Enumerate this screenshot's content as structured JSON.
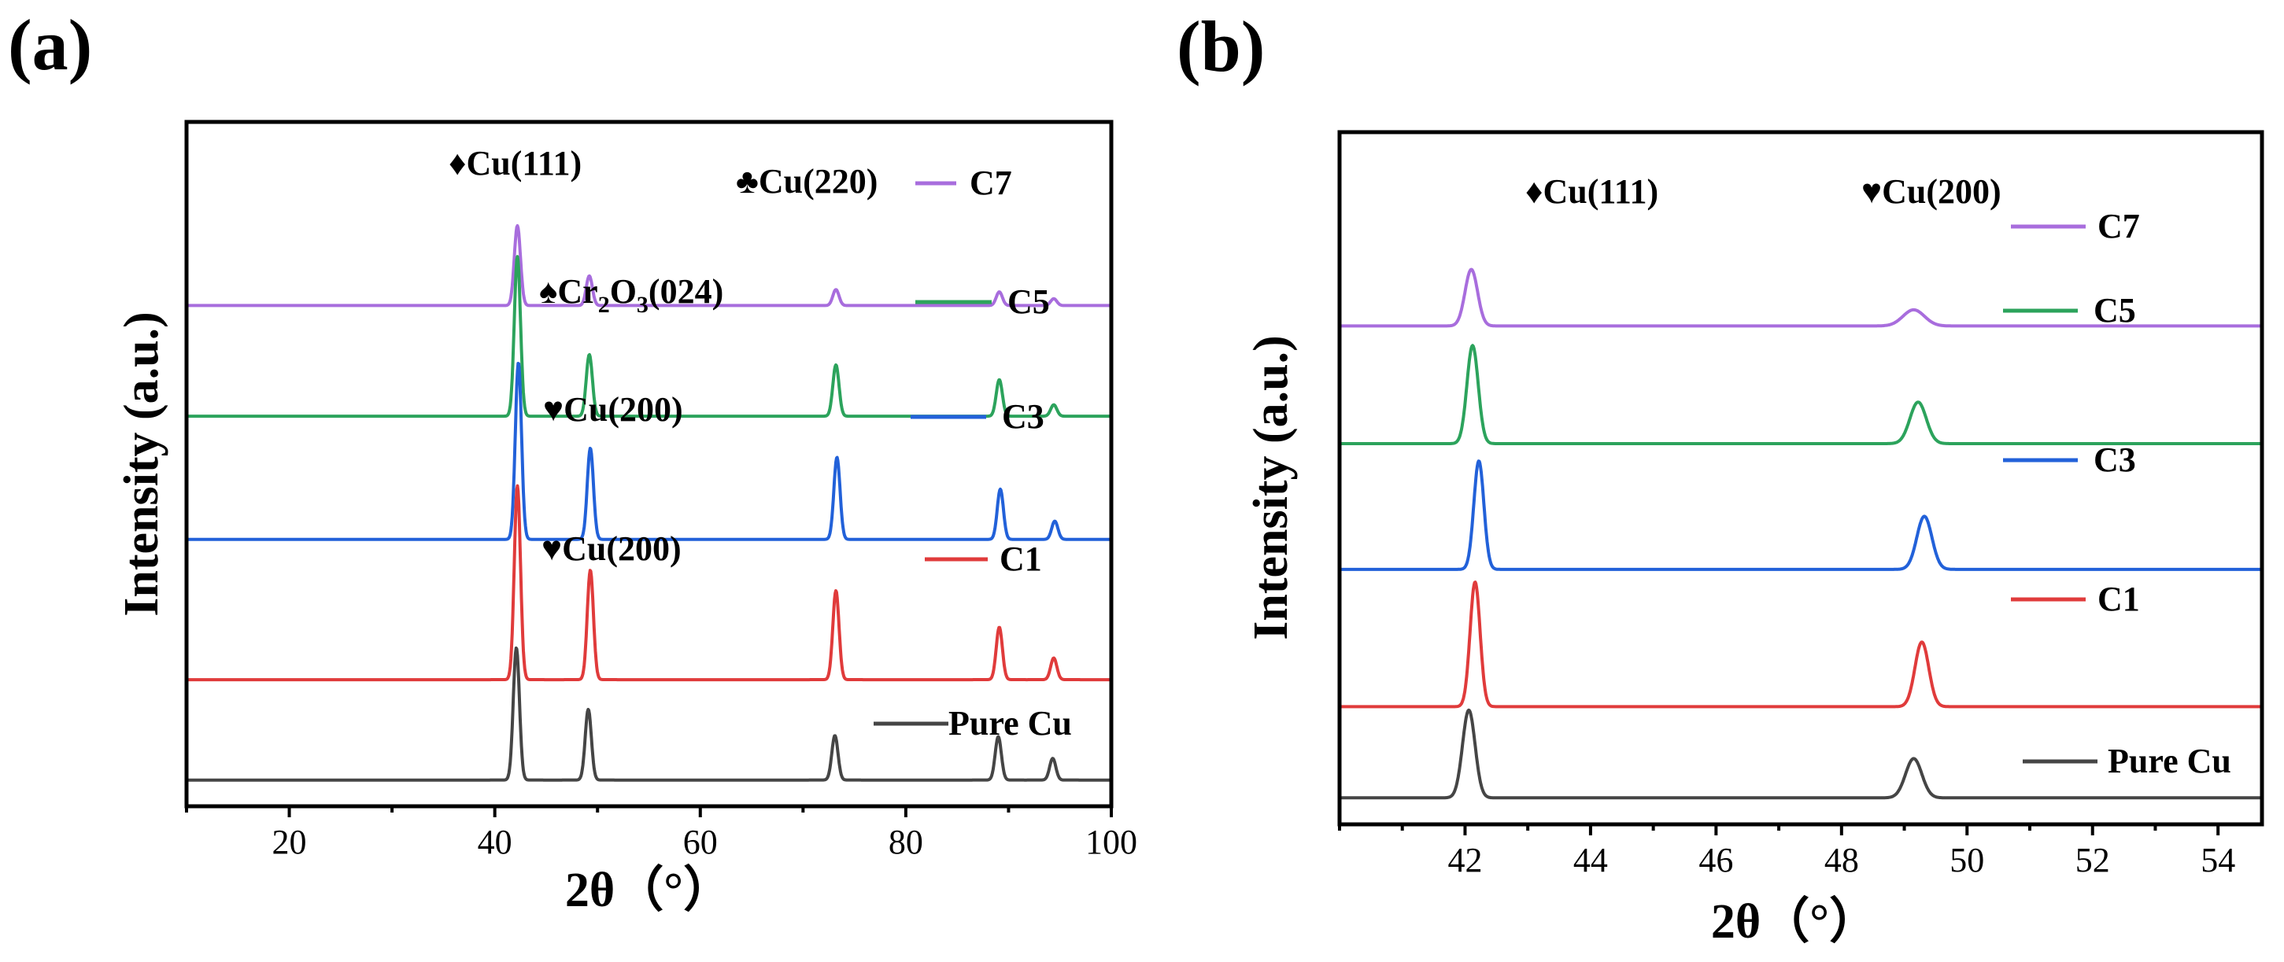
{
  "chart_data": [
    {
      "type": "line",
      "panel_label": "(a)",
      "xlabel": "2θ（°）",
      "ylabel": "Intensity (a.u.)",
      "xlim": [
        10,
        100
      ],
      "xticks": [
        20,
        40,
        60,
        80,
        100
      ],
      "peak_width": 0.3,
      "series": [
        {
          "name": "C7",
          "color": "#a86ddd",
          "baseline": 0.8,
          "offset": 0.9,
          "peaks": [
            [
              42.2,
              7.0
            ],
            [
              49.2,
              2.6
            ],
            [
              73.2,
              1.4
            ],
            [
              89.1,
              1.2
            ],
            [
              94.4,
              0.6
            ]
          ]
        },
        {
          "name": "C5",
          "color": "#2ca35c",
          "baseline": 0.8,
          "offset": 10.6,
          "peaks": [
            [
              42.2,
              14.0
            ],
            [
              49.2,
              5.4
            ],
            [
              73.2,
              4.5
            ],
            [
              89.1,
              3.2
            ],
            [
              94.4,
              1.0
            ]
          ]
        },
        {
          "name": "C3",
          "color": "#2261d9",
          "baseline": 0.8,
          "offset": 21.4,
          "peaks": [
            [
              42.3,
              15.5
            ],
            [
              49.3,
              8.0
            ],
            [
              73.3,
              7.2
            ],
            [
              89.2,
              4.4
            ],
            [
              94.5,
              1.6
            ]
          ]
        },
        {
          "name": "C1",
          "color": "#e03b3b",
          "baseline": 0.8,
          "offset": 33.7,
          "peaks": [
            [
              42.2,
              17.0
            ],
            [
              49.3,
              9.6
            ],
            [
              73.2,
              7.8
            ],
            [
              89.1,
              4.6
            ],
            [
              94.4,
              1.9
            ]
          ]
        },
        {
          "name": "Pure Cu",
          "color": "#454545",
          "baseline": 0.9,
          "offset": 42.6,
          "peaks": [
            [
              42.1,
              11.6
            ],
            [
              49.1,
              6.2
            ],
            [
              73.1,
              3.9
            ],
            [
              89.0,
              3.8
            ],
            [
              94.3,
              1.9
            ]
          ]
        }
      ],
      "annotations": [
        {
          "symbol": "♦",
          "text": "Cu(111)"
        },
        {
          "symbol": "♣",
          "text": "Cu(220)"
        },
        {
          "symbol": "♠",
          "text": "Cr",
          "sub1": "2",
          "mid": "O",
          "sub2": "3",
          "tail": "(024)"
        },
        {
          "symbol": "♥",
          "text": "Cu(200)"
        },
        {
          "symbol": "♥",
          "text": "Cu(200)"
        }
      ]
    },
    {
      "type": "line",
      "panel_label": "(b)",
      "xlabel": "2θ（°）",
      "ylabel": "Intensity (a.u.)",
      "xlim": [
        40,
        54.7
      ],
      "xticks": [
        42,
        44,
        46,
        48,
        50,
        52,
        54
      ],
      "series": [
        {
          "name": "C7",
          "color": "#a86ddd",
          "baseline": 0.0,
          "offset": 0.8,
          "peaks": [
            [
              42.1,
              4.9,
              0.1
            ],
            [
              49.15,
              1.4,
              0.17
            ]
          ]
        },
        {
          "name": "C5",
          "color": "#2ca35c",
          "baseline": 0.0,
          "offset": 11.0,
          "peaks": [
            [
              42.12,
              8.5,
              0.09
            ],
            [
              49.22,
              3.6,
              0.13
            ]
          ]
        },
        {
          "name": "C3",
          "color": "#2261d9",
          "baseline": 0.0,
          "offset": 21.9,
          "peaks": [
            [
              42.22,
              9.4,
              0.08
            ],
            [
              49.32,
              4.6,
              0.12
            ]
          ]
        },
        {
          "name": "C1",
          "color": "#e03b3b",
          "baseline": 0.0,
          "offset": 33.8,
          "peaks": [
            [
              42.16,
              10.8,
              0.08
            ],
            [
              49.28,
              5.6,
              0.11
            ]
          ]
        },
        {
          "name": "Pure Cu",
          "color": "#454545",
          "baseline": 0.0,
          "offset": 41.7,
          "peaks": [
            [
              42.06,
              7.6,
              0.1
            ],
            [
              49.15,
              3.4,
              0.13
            ]
          ]
        }
      ],
      "annotations": [
        {
          "symbol": "♦",
          "text": "Cu(111)"
        },
        {
          "symbol": "♥",
          "text": "Cu(200)"
        }
      ]
    }
  ]
}
